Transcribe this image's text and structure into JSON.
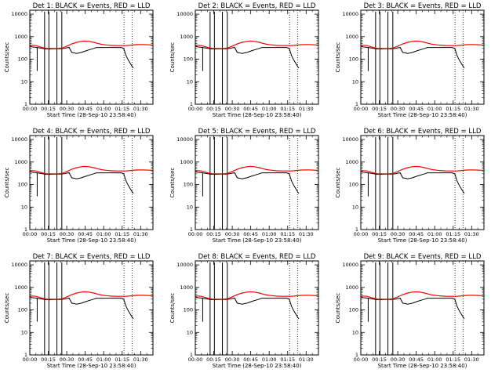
{
  "panel_titles": [
    "Det 1: BLACK = Events, RED = LLD",
    "Det 2: BLACK = Events, RED = LLD",
    "Det 3: BLACK = Events, RED = LLD",
    "Det 4: BLACK = Events, RED = LLD",
    "Det 5: BLACK = Events, RED = LLD",
    "Det 6: BLACK = Events, RED = LLD",
    "Det 7: BLACK = Events, RED = LLD",
    "Det 8: BLACK = Events, RED = LLD",
    "Det 9: BLACK = Events, RED = LLD"
  ],
  "xlabel": "Start Time (28-Sep-10 23:58:40)",
  "ylabel": "Counts/sec",
  "x_tick_labels": [
    "00:00",
    "00:15",
    "00:30",
    "00:45",
    "01:00",
    "01:15",
    "01:30"
  ],
  "y_tick_labels": [
    "1",
    "10",
    "100",
    "1000",
    "10000"
  ],
  "colors": {
    "events": "#000000",
    "lld": "#ff0000",
    "axes": "#000000",
    "background": "#ffffff"
  },
  "chart_data": {
    "type": "line",
    "layout": "3x3 grid of panels",
    "x_unit": "minutes after start time",
    "xlim": [
      0,
      100
    ],
    "ylim": [
      1,
      15000
    ],
    "y_scale": "log",
    "grid": false,
    "legend": "none",
    "vertical_dotted_lines_min": [
      76.5,
      83
    ],
    "series": [
      {
        "x": [
          0,
          5,
          10,
          14,
          18,
          22,
          26,
          30,
          34,
          38,
          42,
          45,
          48,
          52,
          55,
          58,
          62,
          66,
          70,
          74,
          78,
          82,
          86,
          90,
          94,
          98,
          100
        ],
        "values": [
          420,
          400,
          330,
          300,
          300,
          300,
          310,
          380,
          480,
          560,
          620,
          640,
          620,
          560,
          500,
          460,
          430,
          410,
          400,
          400,
          400,
          420,
          440,
          450,
          440,
          430,
          420
        ]
      },
      {
        "x": [
          0,
          2,
          6,
          9,
          12,
          16,
          20,
          24,
          28,
          30,
          32,
          34,
          36,
          38,
          42,
          46,
          50,
          52,
          54,
          58,
          62,
          66,
          70,
          74,
          75,
          76,
          76.5,
          78,
          80,
          82,
          84
        ],
        "values": [
          380,
          350,
          330,
          310,
          290,
          285,
          290,
          290,
          300,
          320,
          330,
          200,
          190,
          180,
          200,
          240,
          280,
          300,
          330,
          330,
          330,
          330,
          330,
          330,
          320,
          300,
          280,
          150,
          90,
          60,
          40
        ]
      }
    ],
    "spikes_min": [
      {
        "x": 6,
        "low": 30
      },
      {
        "x": 12,
        "low": 1,
        "high": 13000
      },
      {
        "x": 15.5,
        "low": 1,
        "high": 13000
      },
      {
        "x": 22,
        "low": 1,
        "high": 13000
      },
      {
        "x": 26,
        "low": 1,
        "high": 13000
      }
    ]
  }
}
